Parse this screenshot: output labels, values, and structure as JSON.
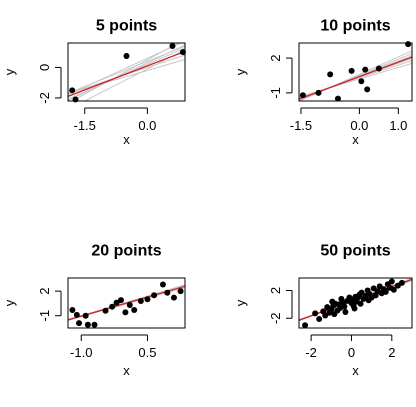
{
  "figure": {
    "background": "#ffffff",
    "point_color": "#000000",
    "fit_line_color": "#cc2222",
    "bootstrap_line_color": "#c8c8c8"
  },
  "chart_data": [
    {
      "type": "scatter",
      "title": "5 points",
      "xlabel": "x",
      "ylabel": "y",
      "xlim": [
        -1.9,
        0.9
      ],
      "ylim": [
        -2.2,
        1.6
      ],
      "x_ticks": [
        -1.5,
        0.0
      ],
      "x_tick_labels": [
        "-1.5",
        "0.0"
      ],
      "y_ticks": [
        -2,
        0
      ],
      "y_tick_labels": [
        "-2",
        "0"
      ],
      "points": [
        {
          "x": -1.8,
          "y": -1.5
        },
        {
          "x": -1.72,
          "y": -2.1
        },
        {
          "x": -0.5,
          "y": 0.75
        },
        {
          "x": 0.6,
          "y": 1.4
        },
        {
          "x": 0.85,
          "y": 1.0
        }
      ],
      "fit": {
        "intercept": 0.1,
        "slope": 1.05
      },
      "bootstrap_fits": [
        {
          "intercept": 0.3,
          "slope": 1.3
        },
        {
          "intercept": 0.0,
          "slope": 0.9
        },
        {
          "intercept": 0.5,
          "slope": 1.5
        },
        {
          "intercept": -0.2,
          "slope": 0.8
        },
        {
          "intercept": 0.2,
          "slope": 1.2
        },
        {
          "intercept": 0.4,
          "slope": 1.1
        },
        {
          "intercept": -0.1,
          "slope": 1.4
        },
        {
          "intercept": 0.6,
          "slope": 1.25
        }
      ]
    },
    {
      "type": "scatter",
      "title": "10 points",
      "xlabel": "x",
      "ylabel": "y",
      "xlim": [
        -1.55,
        1.35
      ],
      "ylim": [
        -1.7,
        3.3
      ],
      "x_ticks": [
        -1.5,
        0.0,
        1.0
      ],
      "x_tick_labels": [
        "-1.5",
        "0.0",
        "1.0"
      ],
      "y_ticks": [
        -1,
        2
      ],
      "y_tick_labels": [
        "-1",
        "2"
      ],
      "points": [
        {
          "x": -1.45,
          "y": -1.2
        },
        {
          "x": -1.05,
          "y": -1.0
        },
        {
          "x": -0.75,
          "y": 0.6
        },
        {
          "x": -0.55,
          "y": -1.5
        },
        {
          "x": -0.2,
          "y": 0.9
        },
        {
          "x": 0.05,
          "y": 0.0
        },
        {
          "x": 0.15,
          "y": 1.0
        },
        {
          "x": 0.2,
          "y": -0.7
        },
        {
          "x": 0.5,
          "y": 1.1
        },
        {
          "x": 1.25,
          "y": 3.2
        }
      ],
      "fit": {
        "intercept": 0.4,
        "slope": 1.25
      },
      "bootstrap_fits": [
        {
          "intercept": 0.3,
          "slope": 1.1
        },
        {
          "intercept": 0.5,
          "slope": 1.4
        },
        {
          "intercept": 0.2,
          "slope": 1.0
        },
        {
          "intercept": 0.6,
          "slope": 1.5
        },
        {
          "intercept": 0.35,
          "slope": 1.2
        },
        {
          "intercept": 0.45,
          "slope": 1.3
        }
      ]
    },
    {
      "type": "scatter",
      "title": "20 points",
      "xlabel": "x",
      "ylabel": "y",
      "xlim": [
        -1.3,
        1.35
      ],
      "ylim": [
        -2.5,
        3.6
      ],
      "x_ticks": [
        -1.0,
        0.5
      ],
      "x_tick_labels": [
        "-1.0",
        "0.5"
      ],
      "y_ticks": [
        -1,
        2
      ],
      "y_tick_labels": [
        "-1",
        "2"
      ],
      "points": [
        {
          "x": -1.2,
          "y": -0.3
        },
        {
          "x": -1.1,
          "y": -0.9
        },
        {
          "x": -1.05,
          "y": -1.9
        },
        {
          "x": -0.9,
          "y": -1.0
        },
        {
          "x": -0.85,
          "y": -2.1
        },
        {
          "x": -0.7,
          "y": -2.1
        },
        {
          "x": -0.45,
          "y": -0.4
        },
        {
          "x": -0.3,
          "y": 0.1
        },
        {
          "x": -0.2,
          "y": 0.6
        },
        {
          "x": -0.1,
          "y": 0.9
        },
        {
          "x": 0.0,
          "y": -0.6
        },
        {
          "x": 0.1,
          "y": 0.3
        },
        {
          "x": 0.2,
          "y": -0.3
        },
        {
          "x": 0.35,
          "y": 0.8
        },
        {
          "x": 0.5,
          "y": 1.0
        },
        {
          "x": 0.65,
          "y": 1.5
        },
        {
          "x": 0.85,
          "y": 2.8
        },
        {
          "x": 0.95,
          "y": 1.8
        },
        {
          "x": 1.1,
          "y": 1.2
        },
        {
          "x": 1.25,
          "y": 2.0
        }
      ],
      "fit": {
        "intercept": 0.5,
        "slope": 1.55
      },
      "bootstrap_fits": [
        {
          "intercept": 0.45,
          "slope": 1.45
        },
        {
          "intercept": 0.55,
          "slope": 1.65
        },
        {
          "intercept": 0.4,
          "slope": 1.5
        },
        {
          "intercept": 0.6,
          "slope": 1.6
        }
      ]
    },
    {
      "type": "scatter",
      "title": "50 points",
      "xlabel": "x",
      "ylabel": "y",
      "xlim": [
        -2.6,
        3.0
      ],
      "ylim": [
        -3.4,
        3.8
      ],
      "x_ticks": [
        -2,
        0,
        2
      ],
      "x_tick_labels": [
        "-2",
        "0",
        "2"
      ],
      "y_ticks": [
        -2,
        2
      ],
      "y_tick_labels": [
        "-2",
        "2"
      ],
      "points": [
        {
          "x": -2.3,
          "y": -3.0
        },
        {
          "x": -1.8,
          "y": -1.3
        },
        {
          "x": -1.6,
          "y": -2.1
        },
        {
          "x": -1.4,
          "y": -1.0
        },
        {
          "x": -1.3,
          "y": -1.6
        },
        {
          "x": -1.2,
          "y": -0.4
        },
        {
          "x": -1.1,
          "y": -1.2
        },
        {
          "x": -1.0,
          "y": -0.7
        },
        {
          "x": -0.9,
          "y": -0.2
        },
        {
          "x": -0.85,
          "y": -1.4
        },
        {
          "x": -0.8,
          "y": 0.1
        },
        {
          "x": -0.7,
          "y": -0.9
        },
        {
          "x": -0.6,
          "y": 0.0
        },
        {
          "x": -0.55,
          "y": -0.5
        },
        {
          "x": -0.5,
          "y": 0.8
        },
        {
          "x": -0.4,
          "y": 0.3
        },
        {
          "x": -0.35,
          "y": -0.3
        },
        {
          "x": -0.3,
          "y": -1.1
        },
        {
          "x": -0.2,
          "y": 0.5
        },
        {
          "x": -0.1,
          "y": 1.0
        },
        {
          "x": 0.0,
          "y": 0.2
        },
        {
          "x": 0.05,
          "y": 0.7
        },
        {
          "x": 0.1,
          "y": -0.2
        },
        {
          "x": 0.2,
          "y": 1.1
        },
        {
          "x": 0.25,
          "y": 0.4
        },
        {
          "x": 0.3,
          "y": 0.9
        },
        {
          "x": 0.4,
          "y": 1.4
        },
        {
          "x": 0.45,
          "y": 0.1
        },
        {
          "x": 0.5,
          "y": 1.7
        },
        {
          "x": 0.6,
          "y": 0.8
        },
        {
          "x": 0.7,
          "y": 1.2
        },
        {
          "x": 0.8,
          "y": 2.0
        },
        {
          "x": 0.85,
          "y": 0.6
        },
        {
          "x": 0.9,
          "y": 1.5
        },
        {
          "x": 1.0,
          "y": 1.0
        },
        {
          "x": 1.1,
          "y": 2.3
        },
        {
          "x": 1.2,
          "y": 1.3
        },
        {
          "x": 1.3,
          "y": 1.9
        },
        {
          "x": 1.4,
          "y": 2.6
        },
        {
          "x": 1.5,
          "y": 1.6
        },
        {
          "x": 1.6,
          "y": 2.2
        },
        {
          "x": 1.7,
          "y": 1.8
        },
        {
          "x": 1.8,
          "y": 2.9
        },
        {
          "x": 1.9,
          "y": 2.4
        },
        {
          "x": 2.0,
          "y": 3.3
        },
        {
          "x": 2.1,
          "y": 2.1
        },
        {
          "x": 2.3,
          "y": 2.7
        },
        {
          "x": 2.5,
          "y": 3.1
        },
        {
          "x": -0.95,
          "y": 0.4
        },
        {
          "x": 0.15,
          "y": -0.6
        }
      ],
      "fit": {
        "intercept": 0.45,
        "slope": 1.05
      },
      "bootstrap_fits": [
        {
          "intercept": 0.4,
          "slope": 1.0
        },
        {
          "intercept": 0.5,
          "slope": 1.1
        },
        {
          "intercept": 0.45,
          "slope": 1.07
        }
      ]
    }
  ]
}
